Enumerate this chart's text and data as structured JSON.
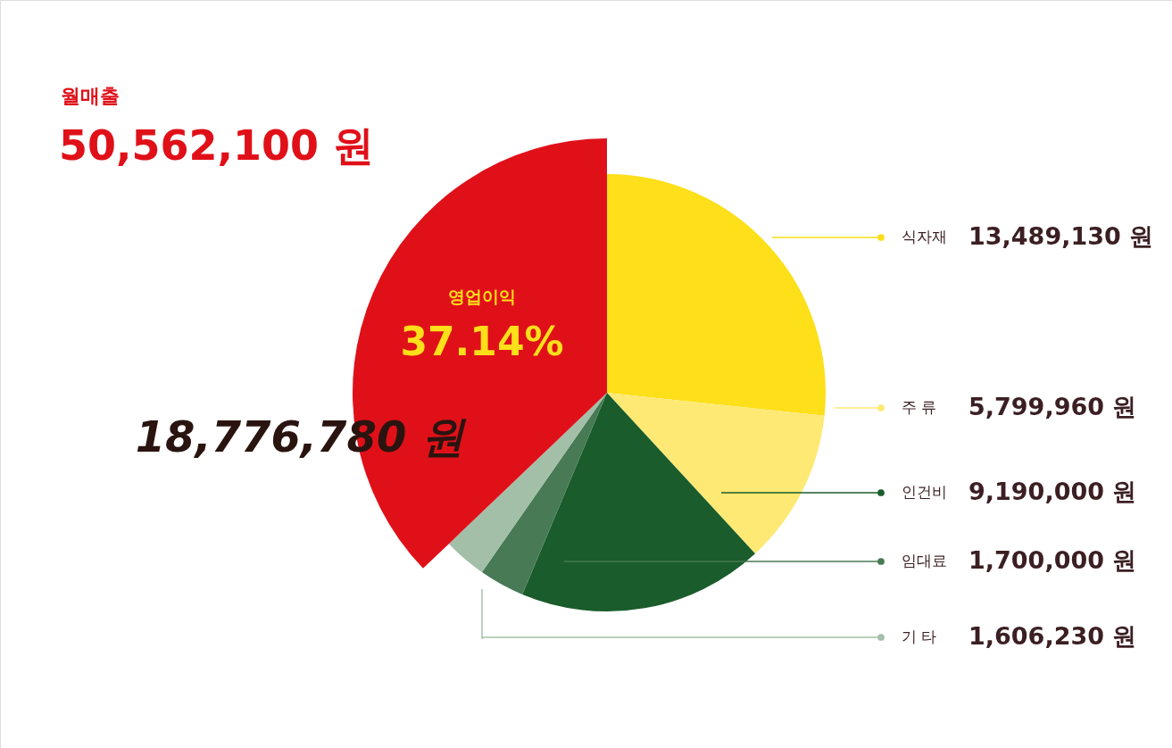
{
  "chart_data": {
    "type": "pie",
    "title": "월매출",
    "subtitle": "50,562,100 원",
    "categories": [
      "식자재",
      "주 류",
      "인건비",
      "임대료",
      "기 타",
      "영업이익"
    ],
    "values": [
      13489130,
      5799960,
      9190000,
      1700000,
      1606230,
      18776780
    ],
    "colors": [
      "#fddf1a",
      "#fee974",
      "#1a5c2b",
      "#477a55",
      "#a3bfa8",
      "#e01019"
    ],
    "value_labels": [
      "13,489,130 원",
      "5,799,960 원",
      "9,190,000 원",
      "1,700,000 원",
      "1,606,230 원",
      "18,776,780 원"
    ],
    "annotations": [
      "37.14%"
    ],
    "legend": "right"
  }
}
